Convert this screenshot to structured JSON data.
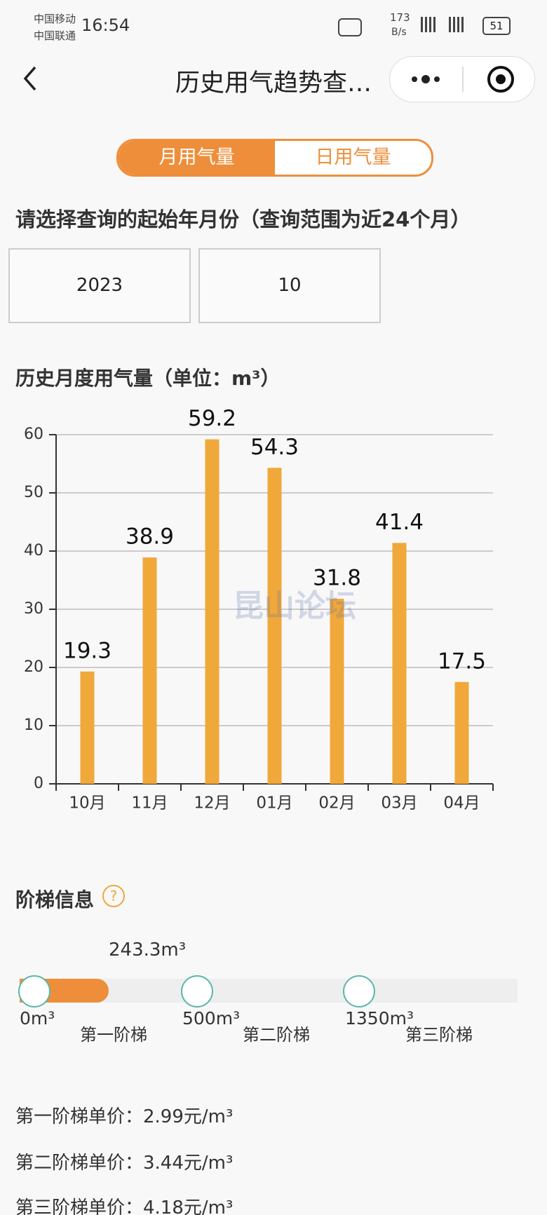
{
  "status_bar": {
    "carrier1": "中国移动",
    "carrier2": "中国联通",
    "time": "16:54",
    "speed": "173",
    "speed_unit": "B/s",
    "battery": "51"
  },
  "nav": {
    "title": "历史用气趋势查…"
  },
  "tabs": [
    "月用气量",
    "日用气量"
  ],
  "prompt": "请选择查询的起始年月份（查询范围为近24个月）",
  "selectors": {
    "year": "2023",
    "month": "10"
  },
  "chart_data": {
    "type": "bar",
    "title": "历史月度用气量（单位：m³）",
    "categories": [
      "10月",
      "11月",
      "12月",
      "01月",
      "02月",
      "03月",
      "04月"
    ],
    "values": [
      19.3,
      38.9,
      59.2,
      54.3,
      31.8,
      41.4,
      17.5
    ],
    "color": "#f0a83a",
    "ylim": [
      0,
      60
    ],
    "yticks": [
      0,
      10,
      20,
      30,
      40,
      50,
      60
    ],
    "grid": true
  },
  "watermark": "昆山论坛",
  "tiers": {
    "title": "阶梯信息",
    "usage": "243.3m³",
    "thresholds": [
      "0m³",
      "500m³",
      "1350m³"
    ],
    "names": [
      "第一阶梯",
      "第二阶梯",
      "第三阶梯"
    ],
    "prices": [
      "第一阶梯单价：2.99元/m³",
      "第二阶梯单价：3.44元/m³",
      "第三阶梯单价：4.18元/m³"
    ]
  }
}
